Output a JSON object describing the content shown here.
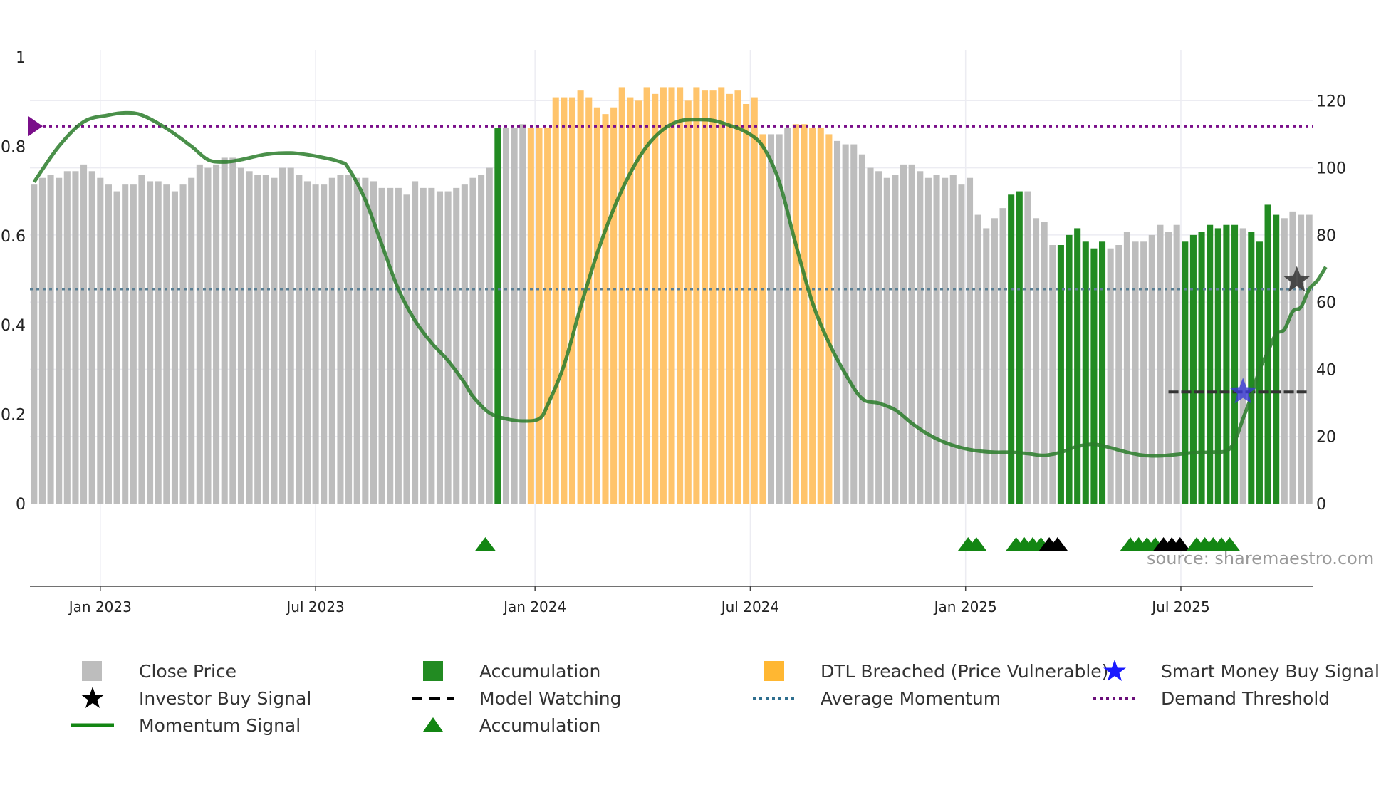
{
  "chart_data": {
    "type": "bar",
    "title": "",
    "left_axis": {
      "ticks": [
        "0",
        "0.2",
        "0.4",
        "0.6",
        "0.8",
        "1"
      ],
      "range": [
        0,
        1
      ]
    },
    "right_axis": {
      "ticks": [
        "0",
        "20",
        "40",
        "60",
        "80",
        "100",
        "120"
      ],
      "range": [
        0,
        133
      ]
    },
    "x_ticks": [
      "Jan 2023",
      "Jul 2023",
      "Jan 2024",
      "Jul 2024",
      "Jan 2025",
      "Jul 2025"
    ],
    "x_tick_weeks": [
      8,
      34,
      60.5,
      86.5,
      112.5,
      138.5
    ],
    "close_price": [
      95,
      97,
      98,
      97,
      99,
      99,
      101,
      99,
      97,
      95,
      93,
      95,
      95,
      98,
      96,
      96,
      95,
      93,
      95,
      97,
      101,
      100,
      101,
      103,
      103,
      100,
      99,
      98,
      98,
      97,
      100,
      100,
      98,
      96,
      95,
      95,
      97,
      98,
      98,
      97,
      97,
      96,
      94,
      94,
      94,
      92,
      96,
      94,
      94,
      93,
      93,
      94,
      95,
      97,
      98,
      100,
      112,
      112,
      112,
      113,
      112,
      112,
      112,
      121,
      121,
      121,
      123,
      121,
      118,
      116,
      118,
      124,
      121,
      120,
      124,
      122,
      124,
      124,
      124,
      120,
      124,
      123,
      123,
      124,
      122,
      123,
      119,
      121,
      110,
      110,
      110,
      112,
      113,
      113,
      112,
      112,
      110,
      108,
      107,
      107,
      104,
      100,
      99,
      97,
      98,
      101,
      101,
      99,
      97,
      98,
      97,
      98,
      95,
      97,
      86,
      82,
      85,
      88,
      92,
      93,
      93,
      85,
      84,
      77,
      77,
      80,
      82,
      78,
      76,
      78,
      76,
      77,
      81,
      78,
      78,
      80,
      83,
      81,
      83,
      78,
      80,
      81,
      83,
      82,
      83,
      83,
      82,
      81,
      78,
      89,
      86,
      85,
      87,
      86,
      86
    ],
    "series_flags": {
      "accumulation_weeks": [
        56,
        118,
        119,
        124,
        125,
        126,
        127,
        128,
        129,
        139,
        140,
        141,
        142,
        143,
        144,
        145,
        147,
        148,
        149,
        150
      ],
      "dtl_breached_weeks_from_to": [
        [
          60,
          88
        ],
        [
          92,
          96
        ]
      ]
    },
    "momentum_signal": [
      [
        0,
        0.72
      ],
      [
        3,
        0.8
      ],
      [
        6,
        0.855
      ],
      [
        9,
        0.87
      ],
      [
        11,
        0.875
      ],
      [
        13,
        0.87
      ],
      [
        16,
        0.84
      ],
      [
        19,
        0.8
      ],
      [
        21,
        0.77
      ],
      [
        23,
        0.765
      ],
      [
        25,
        0.77
      ],
      [
        28,
        0.782
      ],
      [
        31,
        0.785
      ],
      [
        34,
        0.778
      ],
      [
        37,
        0.765
      ],
      [
        38,
        0.75
      ],
      [
        40,
        0.68
      ],
      [
        42,
        0.58
      ],
      [
        44,
        0.48
      ],
      [
        46,
        0.41
      ],
      [
        48,
        0.36
      ],
      [
        50,
        0.32
      ],
      [
        52,
        0.27
      ],
      [
        53,
        0.24
      ],
      [
        55,
        0.203
      ],
      [
        57,
        0.19
      ],
      [
        59,
        0.185
      ],
      [
        61,
        0.19
      ],
      [
        62,
        0.22
      ],
      [
        64,
        0.31
      ],
      [
        66,
        0.44
      ],
      [
        68,
        0.56
      ],
      [
        70,
        0.66
      ],
      [
        72,
        0.74
      ],
      [
        74,
        0.8
      ],
      [
        76,
        0.838
      ],
      [
        78,
        0.857
      ],
      [
        80,
        0.86
      ],
      [
        82,
        0.858
      ],
      [
        84,
        0.847
      ],
      [
        86,
        0.832
      ],
      [
        88,
        0.8
      ],
      [
        90,
        0.72
      ],
      [
        92,
        0.58
      ],
      [
        94,
        0.45
      ],
      [
        96,
        0.36
      ],
      [
        98,
        0.29
      ],
      [
        100,
        0.235
      ],
      [
        102,
        0.225
      ],
      [
        104,
        0.21
      ],
      [
        106,
        0.18
      ],
      [
        108,
        0.155
      ],
      [
        110,
        0.137
      ],
      [
        112,
        0.125
      ],
      [
        114,
        0.118
      ],
      [
        116,
        0.115
      ],
      [
        118,
        0.115
      ],
      [
        120,
        0.112
      ],
      [
        122,
        0.108
      ],
      [
        124,
        0.115
      ],
      [
        126,
        0.128
      ],
      [
        128,
        0.133
      ],
      [
        130,
        0.125
      ],
      [
        132,
        0.115
      ],
      [
        134,
        0.108
      ],
      [
        136,
        0.107
      ],
      [
        138,
        0.11
      ],
      [
        140,
        0.114
      ],
      [
        142,
        0.115
      ],
      [
        144,
        0.118
      ],
      [
        145,
        0.14
      ],
      [
        146,
        0.19
      ],
      [
        147,
        0.24
      ],
      [
        148,
        0.3
      ],
      [
        149,
        0.34
      ],
      [
        150,
        0.38
      ],
      [
        151,
        0.39
      ],
      [
        152,
        0.43
      ],
      [
        153,
        0.44
      ],
      [
        154,
        0.48
      ],
      [
        155,
        0.5
      ],
      [
        156,
        0.53
      ]
    ],
    "average_momentum": 0.48,
    "demand_threshold": 0.845,
    "model_watching": {
      "start_week": 137,
      "end_week": 154,
      "value": 0.25
    },
    "investor_buy_signal": {
      "week": 152.5,
      "value": 0.5
    },
    "smart_money_buy_signal": {
      "week": 146,
      "value": 0.25
    },
    "accumulation_markers": [
      {
        "week": 54.5,
        "color": "#138613"
      },
      {
        "week": 112.8,
        "color": "#138613"
      },
      {
        "week": 113.8,
        "color": "#138613"
      },
      {
        "week": 118.6,
        "color": "#138613"
      },
      {
        "week": 119.6,
        "color": "#138613"
      },
      {
        "week": 120.6,
        "color": "#138613"
      },
      {
        "week": 121.6,
        "color": "#138613"
      },
      {
        "week": 122.6,
        "color": "#000000"
      },
      {
        "week": 123.6,
        "color": "#000000"
      },
      {
        "week": 132.4,
        "color": "#138613"
      },
      {
        "week": 133.4,
        "color": "#138613"
      },
      {
        "week": 134.4,
        "color": "#138613"
      },
      {
        "week": 135.4,
        "color": "#138613"
      },
      {
        "week": 136.4,
        "color": "#000000"
      },
      {
        "week": 137.4,
        "color": "#000000"
      },
      {
        "week": 138.4,
        "color": "#000000"
      },
      {
        "week": 140.4,
        "color": "#138613"
      },
      {
        "week": 141.4,
        "color": "#138613"
      },
      {
        "week": 142.4,
        "color": "#138613"
      },
      {
        "week": 143.4,
        "color": "#138613"
      },
      {
        "week": 144.4,
        "color": "#138613"
      }
    ],
    "colors": {
      "close": "#bdbdbd",
      "accumulation": "#228b22",
      "dtl": "#ffc46b",
      "momentum": "#2a7d2a",
      "average": "#5a7f94",
      "demand": "#7a0f8a",
      "watching": "#333333"
    }
  },
  "watermark": "source: sharemaestro.com",
  "legend": {
    "close_price": "Close Price",
    "accumulation_bar": "Accumulation",
    "dtl_breached": "DTL Breached (Price Vulnerable)",
    "smart_money": "Smart Money Buy Signal",
    "investor_buy": "Investor Buy Signal",
    "model_watching": "Model Watching",
    "average_momentum": "Average Momentum",
    "demand_threshold": "Demand Threshold",
    "momentum_signal": "Momentum Signal",
    "accumulation_marker": "Accumulation"
  }
}
